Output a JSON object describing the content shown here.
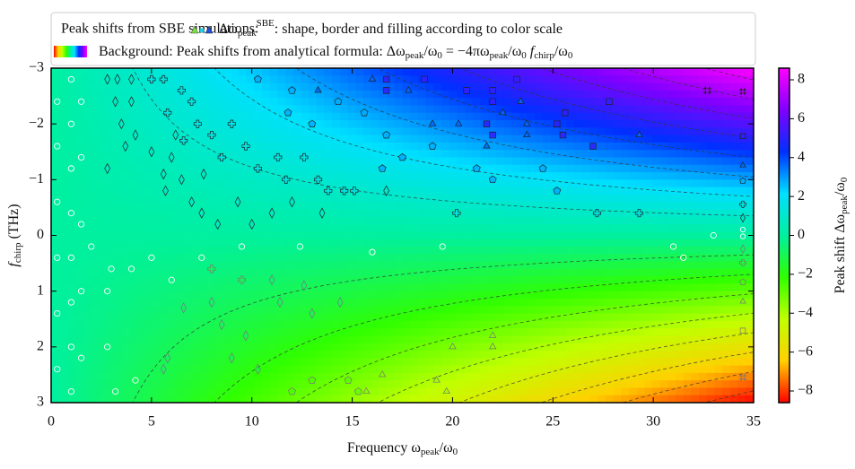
{
  "chart_data": {
    "type": "heatmap-scatter",
    "legend": {
      "line1_prefix": "Peak shifts from SBE simulations:",
      "line1": [
        {
          "t": "Δω"
        },
        {
          "t": "peak",
          "s": "sub"
        },
        {
          "t": "SBE",
          "s": "sup"
        },
        {
          "t": ": shape, border and filling according to color scale"
        }
      ],
      "line2": [
        {
          "t": "Background: Peak shifts from analytical formula: Δω"
        },
        {
          "t": "peak",
          "s": "sub"
        },
        {
          "t": "/ω"
        },
        {
          "t": "0",
          "s": "sub"
        },
        {
          "t": " = −4πω"
        },
        {
          "t": "peak",
          "s": "sub"
        },
        {
          "t": "/ω"
        },
        {
          "t": "0",
          "s": "sub"
        },
        {
          "t": " f",
          "s": "it"
        },
        {
          "t": "chirp",
          "s": "sub"
        },
        {
          "t": "/ω"
        },
        {
          "t": "0",
          "s": "sub"
        }
      ]
    },
    "xlabel": [
      {
        "t": "Frequency ω"
      },
      {
        "t": "peak",
        "s": "sub"
      },
      {
        "t": "/ω"
      },
      {
        "t": "0",
        "s": "sub"
      }
    ],
    "ylabel": [
      {
        "t": "f",
        "s": "it"
      },
      {
        "t": "chirp",
        "s": "sub"
      },
      {
        "t": " (THz)"
      }
    ],
    "zlabel": [
      {
        "t": "Peak shift Δω"
      },
      {
        "t": "peak",
        "s": "sub"
      },
      {
        "t": "/ω"
      },
      {
        "t": "0",
        "s": "sub"
      }
    ],
    "xlim": [
      0,
      35
    ],
    "xticks": [
      0,
      5,
      10,
      15,
      20,
      25,
      30,
      35
    ],
    "ylim": [
      -3,
      3
    ],
    "y_inverted": true,
    "yticks": [
      {
        "value": -3,
        "label": "−3"
      },
      {
        "value": -2,
        "label": "−2"
      },
      {
        "value": -1,
        "label": "−1"
      },
      0,
      1,
      2,
      3
    ],
    "zlim": [
      -8.6,
      8.6
    ],
    "zticks": [
      {
        "value": -8,
        "label": "−8"
      },
      {
        "value": -6,
        "label": "−6"
      },
      {
        "value": -4,
        "label": "−4"
      },
      {
        "value": -2,
        "label": "−2"
      },
      0,
      2,
      4,
      6,
      8
    ],
    "colorscale": [
      "#ff0000",
      "#ffd000",
      "#c0ff00",
      "#30ff00",
      "#00f0a0",
      "#00e0ff",
      "#0030ff",
      "#8000ff",
      "#ff00ff"
    ],
    "shape_key": {
      "shapes": [
        "x",
        "square",
        "triangle",
        "pentagon",
        "plus",
        "diamond",
        "circle",
        "circle",
        "diamond",
        "plus",
        "pentagon",
        "triangle",
        "square",
        "x"
      ],
      "values": [
        7.4,
        5.1,
        3.6,
        2.8,
        1.6,
        0.9,
        0.3,
        -0.05,
        -0.7,
        -1.4,
        -2.4,
        -3.4,
        -4.9,
        -7.3
      ]
    },
    "points": {
      "x": [
        0.3,
        0.3,
        0.3,
        0.3,
        0.3,
        0.3,
        1,
        1,
        1,
        1,
        1,
        1,
        1,
        1,
        1.5,
        1.5,
        1.5,
        1.5,
        1.5,
        2.8,
        2.8,
        3.2,
        3,
        4,
        4.2,
        5,
        6,
        7.5,
        9.5,
        12.4,
        16,
        19.5,
        31,
        33,
        31.5,
        2,
        2.8,
        3.3,
        4,
        3.2,
        4,
        3.5,
        4.2,
        3.7,
        2.8,
        5,
        6,
        5.6,
        6.5,
        5.7,
        7,
        7.5,
        8.3,
        10,
        11,
        12,
        13.5,
        16.7,
        6.2,
        7.6,
        9.3,
        5,
        5.6,
        6.5,
        7,
        5.8,
        7.3,
        6.6,
        8,
        9,
        9.7,
        8.5,
        10.3,
        11.3,
        11.7,
        13.3,
        13.8,
        14.6,
        12.6,
        15.1,
        20.2,
        27.2,
        29.3,
        10.3,
        12,
        14.3,
        11.8,
        13,
        15.6,
        16.7,
        17.5,
        19,
        21.2,
        22,
        24.5,
        25.2,
        16.5,
        16,
        17.8,
        19,
        20.3,
        22.5,
        23.4,
        21.7,
        23.7,
        23.7,
        29.3,
        13.3,
        16.7,
        16.7,
        18.6,
        20.7,
        22,
        22,
        23.2,
        21.7,
        22,
        25.5,
        25.2,
        25.6,
        27,
        27.8,
        32.7,
        8,
        8.5,
        9.7,
        9,
        10.3,
        11,
        11.4,
        12.6,
        13,
        14.4,
        6.6,
        5.8,
        5.6,
        20,
        22,
        16.5,
        19.7,
        15.7,
        19.2,
        22,
        15.3,
        12,
        13,
        14.8,
        8,
        9.5
      ],
      "y": [
        -2.4,
        -1.6,
        -0.6,
        0.4,
        1.4,
        2.4,
        -2.8,
        -2,
        -1.2,
        -0.4,
        0.4,
        1.2,
        2,
        2.8,
        -2.4,
        -1.4,
        -0.2,
        1,
        2.2,
        1,
        2,
        2.8,
        0.6,
        0.6,
        2.6,
        0.4,
        0.8,
        0.4,
        0.2,
        0.2,
        0.3,
        0.2,
        0.2,
        0,
        0.4,
        0.2,
        -2.8,
        -2.8,
        -2.8,
        -2.4,
        -2.4,
        -2,
        -1.8,
        -1.6,
        -1.2,
        -1.5,
        -1.4,
        -1.1,
        -1,
        -0.8,
        -0.6,
        -0.4,
        -0.2,
        -0.2,
        -0.4,
        -0.6,
        -0.4,
        -0.8,
        -1.8,
        -1.1,
        -0.6,
        -2.8,
        -2.8,
        -2.6,
        -2.4,
        -2.2,
        -2,
        -1.7,
        -1.8,
        -2,
        -1.6,
        -1.4,
        -1.2,
        -1.4,
        -1,
        -1,
        -0.8,
        -0.8,
        -1.4,
        -0.8,
        -0.4,
        -0.4,
        -0.4,
        -2.8,
        -2.6,
        -2.4,
        -2.2,
        -2,
        -2.2,
        -1.8,
        -1.4,
        -1.6,
        -1.2,
        -1,
        -1.2,
        -0.8,
        -1.2,
        -2.8,
        -2.6,
        -2,
        -2,
        -2.2,
        -2.4,
        -1.6,
        -2,
        -1.8,
        -1.8,
        -2.6,
        -2.8,
        -2.6,
        -2.8,
        -2.6,
        -2.6,
        -2.4,
        -2.8,
        -2,
        -1.8,
        -1.8,
        -2,
        -2.2,
        -1.6,
        -2.4,
        -2.6,
        1.2,
        1.6,
        1.8,
        2.2,
        2.4,
        0.8,
        1.2,
        0.9,
        1.4,
        1.2,
        1.3,
        2.2,
        2.4,
        2,
        1.8,
        2.5,
        2.8,
        2.8,
        2.6,
        2,
        2.8,
        2.8,
        2.6,
        2.6,
        0.6,
        0.8
      ],
      "z": [
        0.1,
        0.05,
        0,
        0,
        0,
        -0.1,
        0.2,
        0.15,
        0.1,
        0,
        0,
        -0.1,
        -0.15,
        -0.2,
        0.3,
        0.2,
        0,
        -0.1,
        -0.2,
        -0.2,
        -0.3,
        -0.3,
        -0.1,
        -0.2,
        -0.3,
        -0.1,
        -0.2,
        -0.2,
        -0.1,
        -0.2,
        -0.2,
        -0.2,
        -0.3,
        0,
        -0.3,
        0,
        0.9,
        0.9,
        0.9,
        0.9,
        0.9,
        0.9,
        0.9,
        0.9,
        0.9,
        0.9,
        0.9,
        0.9,
        0.9,
        0.9,
        0.9,
        0.9,
        0.9,
        0.9,
        0.9,
        0.9,
        0.9,
        0.9,
        0.9,
        0.9,
        0.9,
        1.6,
        1.6,
        1.6,
        1.6,
        1.6,
        1.6,
        1.6,
        1.6,
        1.6,
        1.6,
        1.6,
        1.6,
        1.6,
        1.6,
        1.6,
        1.6,
        1.6,
        1.6,
        1.6,
        1.6,
        1.6,
        1.6,
        2.8,
        2.8,
        2.8,
        2.8,
        2.8,
        2.8,
        2.8,
        2.8,
        2.8,
        2.8,
        2.8,
        2.8,
        2.8,
        2.8,
        3.6,
        3.6,
        3.6,
        3.6,
        3.6,
        3.6,
        3.6,
        3.6,
        3.6,
        3.6,
        3.6,
        5.1,
        5.1,
        5.1,
        5.1,
        5.1,
        5.1,
        5.1,
        5.1,
        5.1,
        5.1,
        5.1,
        5.1,
        5.1,
        5.1,
        7.4,
        -0.7,
        -0.7,
        -0.7,
        -0.7,
        -0.7,
        -0.7,
        -0.7,
        -0.7,
        -0.7,
        -0.7,
        -0.7,
        -0.7,
        -0.7,
        -3.4,
        -3.4,
        -3.4,
        -3.4,
        -3.4,
        -3.4,
        -3.4,
        -2.4,
        -2.4,
        -2.4,
        -2.4,
        -1.4,
        -1.4
      ]
    }
  }
}
